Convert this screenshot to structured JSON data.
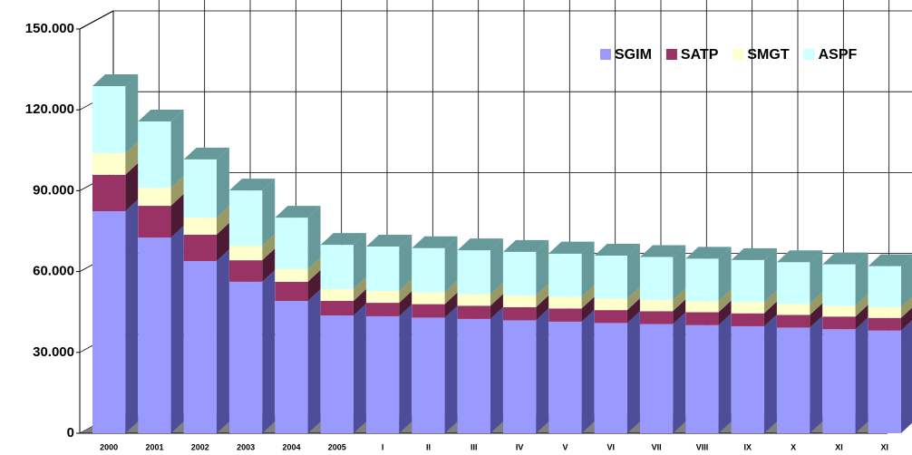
{
  "chart_data": {
    "type": "bar3d_stacked",
    "categories": [
      "2000",
      "2001",
      "2002",
      "2003",
      "2004",
      "2005",
      "I",
      "II",
      "III",
      "IV",
      "V",
      "VI",
      "VII",
      "VIII",
      "IX",
      "X",
      "XI",
      "XI"
    ],
    "series": [
      {
        "name": "SGIM",
        "color": "#9999ff",
        "side": "#4d4d99",
        "values": [
          82400,
          72600,
          63900,
          56200,
          49100,
          43700,
          43400,
          42900,
          42400,
          41900,
          41400,
          40900,
          40500,
          40100,
          39700,
          39200,
          38600,
          38100
        ]
      },
      {
        "name": "SATP",
        "color": "#993366",
        "side": "#4d1a33",
        "values": [
          13500,
          11800,
          9800,
          8000,
          7100,
          5400,
          5000,
          5000,
          4900,
          4900,
          4900,
          4800,
          4800,
          4800,
          4800,
          4700,
          4700,
          4700
        ]
      },
      {
        "name": "SMGT",
        "color": "#ffffcc",
        "side": "#999966",
        "values": [
          8000,
          6700,
          6300,
          5400,
          4700,
          4400,
          4400,
          4400,
          4300,
          4300,
          4300,
          4200,
          4200,
          4100,
          4100,
          4100,
          4000,
          4000
        ]
      },
      {
        "name": "ASPF",
        "color": "#ccffff",
        "side": "#669999",
        "values": [
          24900,
          24600,
          21600,
          20500,
          19100,
          16400,
          16500,
          16400,
          16300,
          16200,
          16100,
          16000,
          15900,
          15800,
          15700,
          15500,
          15400,
          15200
        ]
      }
    ],
    "ylim": [
      0,
      150000
    ],
    "yticks": [
      0,
      {
        "value": 30000,
        "label": "30.000"
      },
      {
        "value": 60000,
        "label": "60.000"
      },
      {
        "value": 90000,
        "label": "90.000"
      },
      {
        "value": 120000,
        "label": "120.000"
      },
      {
        "value": 150000,
        "label": "150.000"
      }
    ],
    "grid": true,
    "legend": "top-right"
  }
}
